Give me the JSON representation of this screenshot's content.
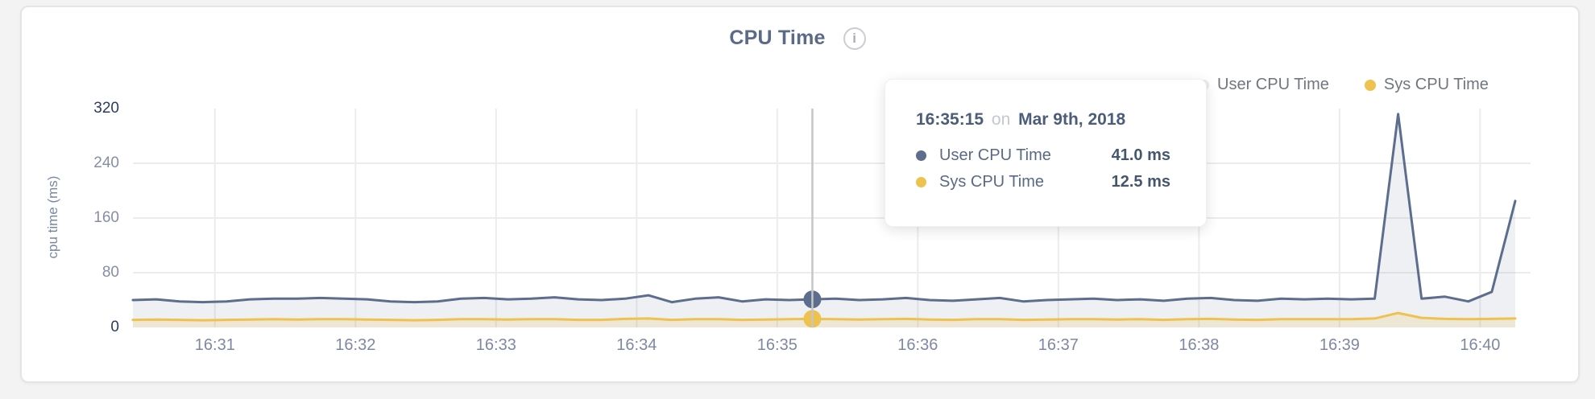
{
  "header": {
    "title": "CPU Time",
    "info_glyph": "i"
  },
  "legend": {
    "items": [
      {
        "label": "User CPU Time",
        "marker_color": "#e9ecef",
        "series_color": "#5c6d8d"
      },
      {
        "label": "Sys CPU Time",
        "marker_color": "#eec24f",
        "series_color": "#eec24f"
      }
    ]
  },
  "tooltip": {
    "time": "16:35:15",
    "on_word": "on",
    "date": "Mar 9th, 2018",
    "rows": [
      {
        "label": "User CPU Time",
        "value": "41.0 ms",
        "color": "#5c6d8d"
      },
      {
        "label": "Sys CPU Time",
        "value": "12.5 ms",
        "color": "#eec24f"
      }
    ]
  },
  "chart_data": {
    "type": "area",
    "title": "CPU Time",
    "xlabel": "",
    "ylabel": "cpu time (ms)",
    "ylim": [
      0,
      320
    ],
    "y_ticks": [
      0,
      80,
      160,
      240,
      320
    ],
    "x_tick_labels": [
      "16:31",
      "16:32",
      "16:33",
      "16:34",
      "16:35",
      "16:36",
      "16:37",
      "16:38",
      "16:39",
      "16:40"
    ],
    "x_tick_seconds": [
      60,
      120,
      180,
      240,
      300,
      360,
      420,
      480,
      540,
      600
    ],
    "x_domain_seconds": [
      25,
      615
    ],
    "grid": true,
    "legend_position": "top-right",
    "grid_color": "#ececec",
    "hover": {
      "time_label": "16:35:15",
      "time_seconds": 315,
      "values": [
        41.0,
        12.5
      ],
      "line_color": "#c6c6c8"
    },
    "series": [
      {
        "name": "User CPU Time",
        "unit": "ms",
        "color": "#5c6d8d",
        "fill": "rgba(92,109,141,0.10)",
        "points": [
          [
            25,
            40
          ],
          [
            35,
            41
          ],
          [
            45,
            38
          ],
          [
            55,
            37
          ],
          [
            65,
            38
          ],
          [
            75,
            41
          ],
          [
            85,
            42
          ],
          [
            95,
            42
          ],
          [
            105,
            43
          ],
          [
            115,
            42
          ],
          [
            125,
            41
          ],
          [
            135,
            38
          ],
          [
            145,
            37
          ],
          [
            155,
            38
          ],
          [
            165,
            42
          ],
          [
            175,
            43
          ],
          [
            185,
            41
          ],
          [
            195,
            42
          ],
          [
            205,
            44
          ],
          [
            215,
            41
          ],
          [
            225,
            40
          ],
          [
            235,
            42
          ],
          [
            245,
            47
          ],
          [
            255,
            37
          ],
          [
            265,
            42
          ],
          [
            275,
            44
          ],
          [
            285,
            38
          ],
          [
            295,
            41
          ],
          [
            305,
            40
          ],
          [
            315,
            41
          ],
          [
            325,
            42
          ],
          [
            335,
            40
          ],
          [
            345,
            41
          ],
          [
            355,
            43
          ],
          [
            365,
            40
          ],
          [
            375,
            39
          ],
          [
            385,
            41
          ],
          [
            395,
            43
          ],
          [
            405,
            38
          ],
          [
            415,
            40
          ],
          [
            425,
            41
          ],
          [
            435,
            42
          ],
          [
            445,
            40
          ],
          [
            455,
            41
          ],
          [
            465,
            39
          ],
          [
            475,
            42
          ],
          [
            485,
            43
          ],
          [
            495,
            40
          ],
          [
            505,
            39
          ],
          [
            515,
            42
          ],
          [
            525,
            41
          ],
          [
            535,
            42
          ],
          [
            545,
            41
          ],
          [
            555,
            42
          ],
          [
            565,
            312
          ],
          [
            575,
            42
          ],
          [
            585,
            45
          ],
          [
            595,
            38
          ],
          [
            605,
            52
          ],
          [
            615,
            185
          ]
        ]
      },
      {
        "name": "Sys CPU Time",
        "unit": "ms",
        "color": "#eec24f",
        "fill": "rgba(237,194,79,0.18)",
        "points": [
          [
            25,
            11
          ],
          [
            35,
            11.5
          ],
          [
            45,
            11
          ],
          [
            55,
            10.5
          ],
          [
            65,
            11
          ],
          [
            75,
            11.5
          ],
          [
            85,
            12
          ],
          [
            95,
            11.5
          ],
          [
            105,
            12
          ],
          [
            115,
            12
          ],
          [
            125,
            11.5
          ],
          [
            135,
            11
          ],
          [
            145,
            10.5
          ],
          [
            155,
            11
          ],
          [
            165,
            12
          ],
          [
            175,
            12
          ],
          [
            185,
            11.5
          ],
          [
            195,
            12
          ],
          [
            205,
            12
          ],
          [
            215,
            11
          ],
          [
            225,
            11
          ],
          [
            235,
            12.5
          ],
          [
            245,
            13
          ],
          [
            255,
            11
          ],
          [
            265,
            12
          ],
          [
            275,
            12
          ],
          [
            285,
            11
          ],
          [
            295,
            11.5
          ],
          [
            305,
            12
          ],
          [
            315,
            12.5
          ],
          [
            325,
            12
          ],
          [
            335,
            11.5
          ],
          [
            345,
            12
          ],
          [
            355,
            12.5
          ],
          [
            365,
            11.5
          ],
          [
            375,
            11
          ],
          [
            385,
            12
          ],
          [
            395,
            12
          ],
          [
            405,
            11
          ],
          [
            415,
            11.5
          ],
          [
            425,
            12
          ],
          [
            435,
            12
          ],
          [
            445,
            11.5
          ],
          [
            455,
            12
          ],
          [
            465,
            11
          ],
          [
            475,
            12
          ],
          [
            485,
            12.5
          ],
          [
            495,
            11.5
          ],
          [
            505,
            11
          ],
          [
            515,
            12
          ],
          [
            525,
            12
          ],
          [
            535,
            12
          ],
          [
            545,
            12
          ],
          [
            555,
            13
          ],
          [
            565,
            21
          ],
          [
            575,
            14
          ],
          [
            585,
            12.5
          ],
          [
            595,
            12
          ],
          [
            605,
            12.5
          ],
          [
            615,
            13
          ]
        ]
      }
    ],
    "y_tick_color_mid": "#858ea4",
    "y_tick_color_extremes": "#2c3c5c",
    "x_tick_color": "#7e88a2"
  }
}
